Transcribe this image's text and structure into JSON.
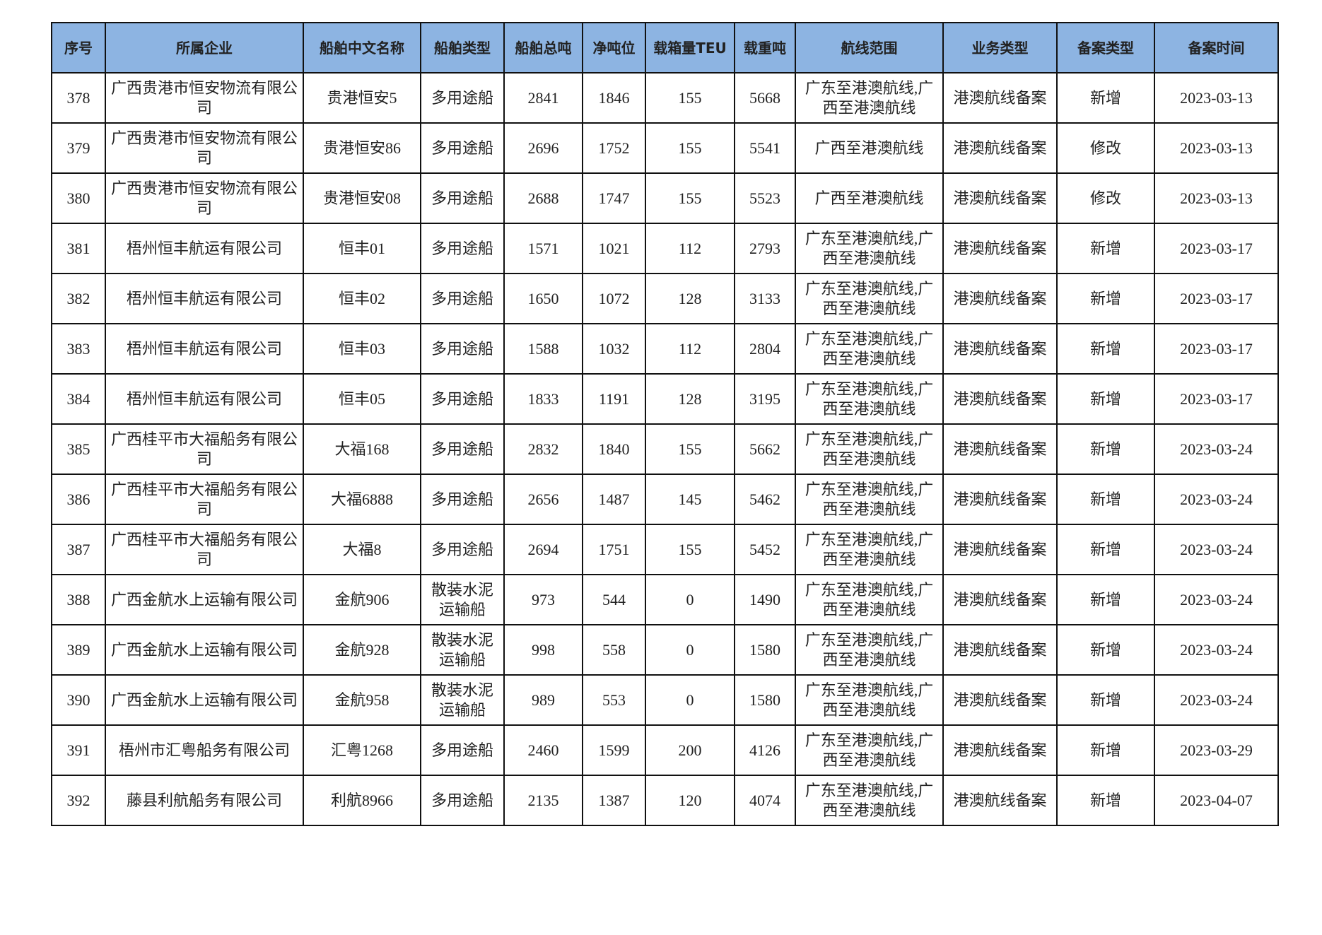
{
  "table": {
    "headers": [
      "序号",
      "所属企业",
      "船舶中文名称",
      "船舶类型",
      "船舶总吨",
      "净吨位",
      "载箱量TEU",
      "载重吨",
      "航线范围",
      "业务类型",
      "备案类型",
      "备案时间"
    ],
    "rows": [
      [
        "378",
        "广西贵港市恒安物流有限公司",
        "贵港恒安5",
        "多用途船",
        "2841",
        "1846",
        "155",
        "5668",
        "广东至港澳航线,广西至港澳航线",
        "港澳航线备案",
        "新增",
        "2023-03-13"
      ],
      [
        "379",
        "广西贵港市恒安物流有限公司",
        "贵港恒安86",
        "多用途船",
        "2696",
        "1752",
        "155",
        "5541",
        "广西至港澳航线",
        "港澳航线备案",
        "修改",
        "2023-03-13"
      ],
      [
        "380",
        "广西贵港市恒安物流有限公司",
        "贵港恒安08",
        "多用途船",
        "2688",
        "1747",
        "155",
        "5523",
        "广西至港澳航线",
        "港澳航线备案",
        "修改",
        "2023-03-13"
      ],
      [
        "381",
        "梧州恒丰航运有限公司",
        "恒丰01",
        "多用途船",
        "1571",
        "1021",
        "112",
        "2793",
        "广东至港澳航线,广西至港澳航线",
        "港澳航线备案",
        "新增",
        "2023-03-17"
      ],
      [
        "382",
        "梧州恒丰航运有限公司",
        "恒丰02",
        "多用途船",
        "1650",
        "1072",
        "128",
        "3133",
        "广东至港澳航线,广西至港澳航线",
        "港澳航线备案",
        "新增",
        "2023-03-17"
      ],
      [
        "383",
        "梧州恒丰航运有限公司",
        "恒丰03",
        "多用途船",
        "1588",
        "1032",
        "112",
        "2804",
        "广东至港澳航线,广西至港澳航线",
        "港澳航线备案",
        "新增",
        "2023-03-17"
      ],
      [
        "384",
        "梧州恒丰航运有限公司",
        "恒丰05",
        "多用途船",
        "1833",
        "1191",
        "128",
        "3195",
        "广东至港澳航线,广西至港澳航线",
        "港澳航线备案",
        "新增",
        "2023-03-17"
      ],
      [
        "385",
        "广西桂平市大福船务有限公司",
        "大福168",
        "多用途船",
        "2832",
        "1840",
        "155",
        "5662",
        "广东至港澳航线,广西至港澳航线",
        "港澳航线备案",
        "新增",
        "2023-03-24"
      ],
      [
        "386",
        "广西桂平市大福船务有限公司",
        "大福6888",
        "多用途船",
        "2656",
        "1487",
        "145",
        "5462",
        "广东至港澳航线,广西至港澳航线",
        "港澳航线备案",
        "新增",
        "2023-03-24"
      ],
      [
        "387",
        "广西桂平市大福船务有限公司",
        "大福8",
        "多用途船",
        "2694",
        "1751",
        "155",
        "5452",
        "广东至港澳航线,广西至港澳航线",
        "港澳航线备案",
        "新增",
        "2023-03-24"
      ],
      [
        "388",
        "广西金航水上运输有限公司",
        "金航906",
        "散装水泥运输船",
        "973",
        "544",
        "0",
        "1490",
        "广东至港澳航线,广西至港澳航线",
        "港澳航线备案",
        "新增",
        "2023-03-24"
      ],
      [
        "389",
        "广西金航水上运输有限公司",
        "金航928",
        "散装水泥运输船",
        "998",
        "558",
        "0",
        "1580",
        "广东至港澳航线,广西至港澳航线",
        "港澳航线备案",
        "新增",
        "2023-03-24"
      ],
      [
        "390",
        "广西金航水上运输有限公司",
        "金航958",
        "散装水泥运输船",
        "989",
        "553",
        "0",
        "1580",
        "广东至港澳航线,广西至港澳航线",
        "港澳航线备案",
        "新增",
        "2023-03-24"
      ],
      [
        "391",
        "梧州市汇粤船务有限公司",
        "汇粤1268",
        "多用途船",
        "2460",
        "1599",
        "200",
        "4126",
        "广东至港澳航线,广西至港澳航线",
        "港澳航线备案",
        "新增",
        "2023-03-29"
      ],
      [
        "392",
        "藤县利航船务有限公司",
        "利航8966",
        "多用途船",
        "2135",
        "1387",
        "120",
        "4074",
        "广东至港澳航线,广西至港澳航线",
        "港澳航线备案",
        "新增",
        "2023-04-07"
      ]
    ]
  },
  "colors": {
    "header_bg": "#8db4e2",
    "border": "#111111"
  }
}
